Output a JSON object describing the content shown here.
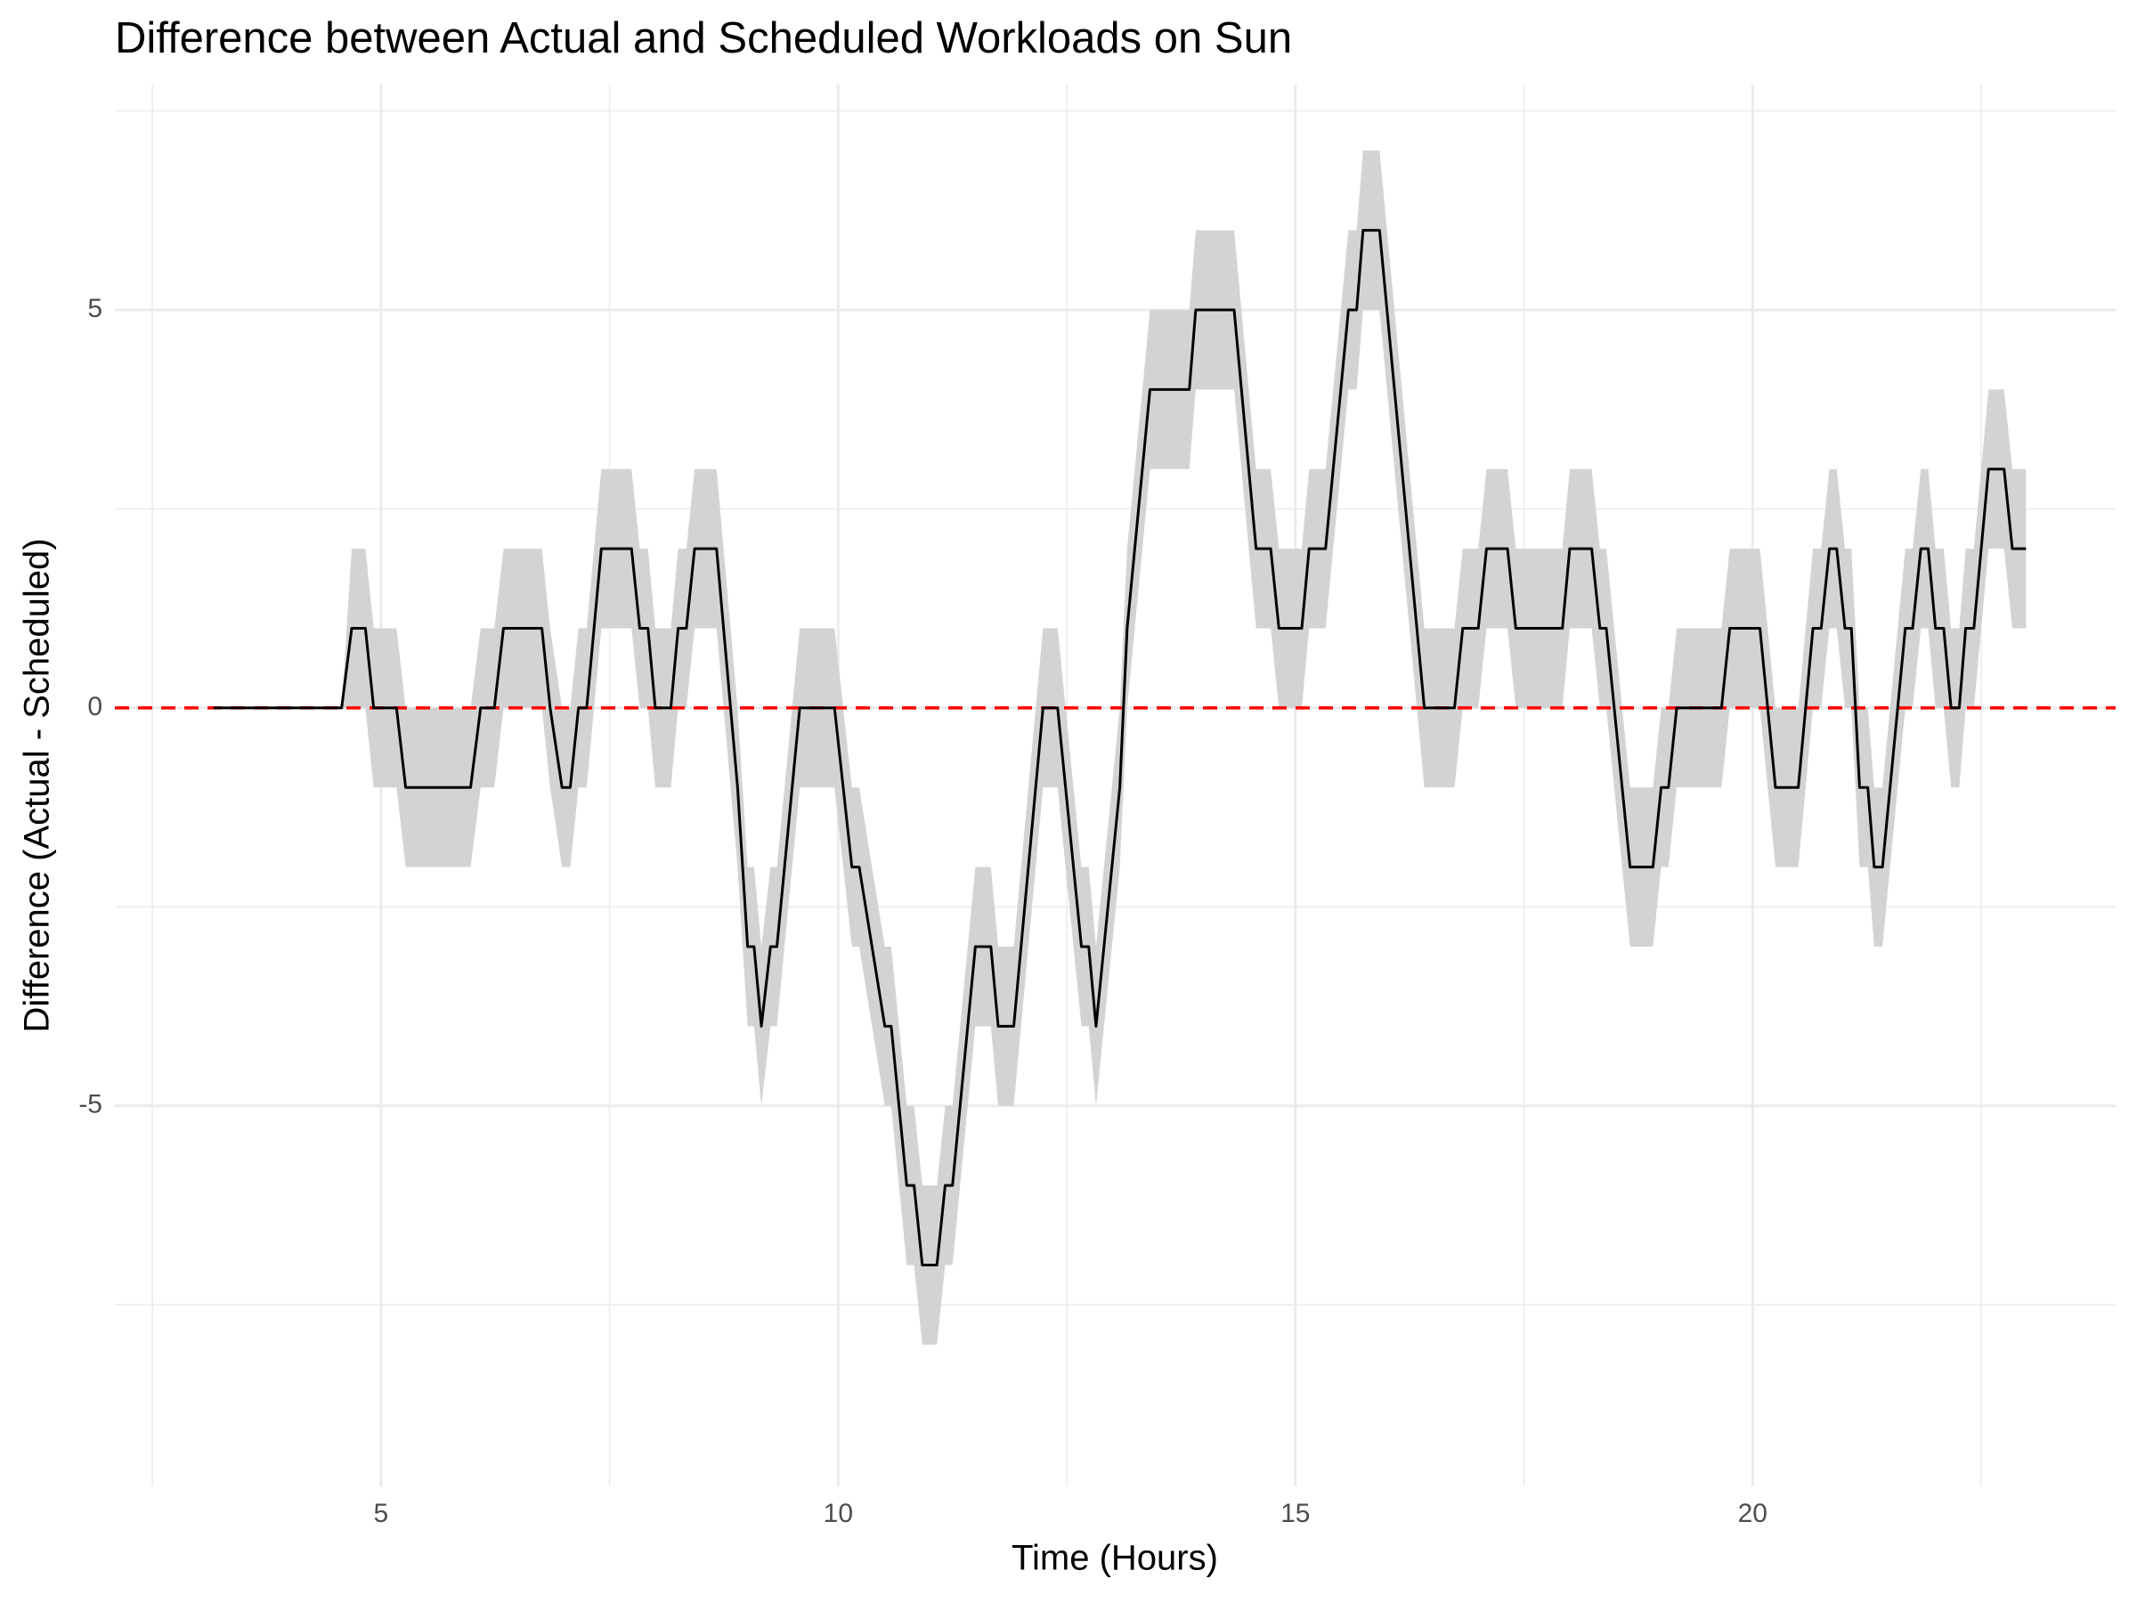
{
  "chart_data": {
    "type": "line",
    "title": "Difference between Actual and Scheduled Workloads on Sun",
    "x_label": "Time (Hours)",
    "y_label": "Difference (Actual - Scheduled)",
    "x": [
      3.17,
      4.57,
      4.68,
      4.83,
      4.92,
      5.17,
      5.27,
      5.98,
      6.09,
      6.24,
      6.34,
      6.76,
      6.85,
      6.98,
      7.07,
      7.16,
      7.25,
      7.41,
      7.74,
      7.83,
      7.92,
      8.0,
      8.17,
      8.25,
      8.34,
      8.43,
      8.67,
      8.9,
      9.01,
      9.08,
      9.16,
      9.26,
      9.33,
      9.58,
      9.96,
      10.15,
      10.23,
      10.51,
      10.58,
      10.75,
      10.83,
      10.92,
      11.08,
      11.17,
      11.25,
      11.5,
      11.67,
      11.75,
      11.92,
      12.24,
      12.4,
      12.66,
      12.74,
      12.82,
      13.08,
      13.16,
      13.41,
      13.84,
      13.91,
      14.33,
      14.57,
      14.73,
      14.82,
      15.07,
      15.15,
      15.33,
      15.58,
      15.67,
      15.74,
      15.92,
      16.41,
      16.74,
      16.83,
      17.0,
      17.09,
      17.32,
      17.41,
      17.92,
      18.0,
      18.24,
      18.33,
      18.4,
      18.66,
      18.91,
      19.0,
      19.08,
      19.17,
      19.66,
      19.75,
      20.08,
      20.25,
      20.5,
      20.66,
      20.75,
      20.84,
      20.92,
      21.01,
      21.08,
      21.17,
      21.26,
      21.33,
      21.42,
      21.67,
      21.75,
      21.84,
      21.92,
      22.0,
      22.09,
      22.17,
      22.26,
      22.33,
      22.42,
      22.58,
      22.75,
      22.84,
      22.99
    ],
    "series": [
      {
        "color": "#000000",
        "values": [
          0,
          0,
          1,
          1,
          0,
          0,
          -1,
          -1,
          0,
          0,
          1,
          1,
          0,
          -1,
          -1,
          0,
          0,
          2,
          2,
          1,
          1,
          0,
          0,
          1,
          1,
          2,
          2,
          -1,
          -3,
          -3,
          -4,
          -3,
          -3,
          0,
          0,
          -2,
          -2,
          -4,
          -4,
          -6,
          -6,
          -7,
          -7,
          -6,
          -6,
          -3,
          -3,
          -4,
          -4,
          0,
          0,
          -3,
          -3,
          -4,
          -1,
          1,
          4,
          4,
          5,
          5,
          2,
          2,
          1,
          1,
          2,
          2,
          5,
          5,
          6,
          6,
          0,
          0,
          1,
          1,
          2,
          2,
          1,
          1,
          2,
          2,
          1,
          1,
          -2,
          -2,
          -1,
          -1,
          0,
          0,
          1,
          1,
          -1,
          -1,
          1,
          1,
          2,
          2,
          1,
          1,
          -1,
          -1,
          -2,
          -2,
          1,
          1,
          2,
          2,
          1,
          1,
          0,
          0,
          1,
          1,
          3,
          3,
          2,
          2
        ]
      }
    ],
    "band": {
      "color": "#d3d3d3",
      "lower": [
        0,
        0,
        0,
        0,
        -1,
        -1,
        -2,
        -2,
        -1,
        -1,
        0,
        0,
        -1,
        -2,
        -2,
        -1,
        -1,
        1,
        1,
        0,
        0,
        -1,
        -1,
        0,
        0,
        1,
        1,
        -2,
        -4,
        -4,
        -5,
        -4,
        -4,
        -1,
        -1,
        -3,
        -3,
        -5,
        -5,
        -7,
        -7,
        -8,
        -8,
        -7,
        -7,
        -4,
        -4,
        -5,
        -5,
        -1,
        -1,
        -4,
        -4,
        -5,
        -2,
        0,
        3,
        3,
        4,
        4,
        1,
        1,
        0,
        0,
        1,
        1,
        4,
        4,
        5,
        5,
        -1,
        -1,
        0,
        0,
        1,
        1,
        0,
        0,
        1,
        1,
        0,
        0,
        -3,
        -3,
        -2,
        -2,
        -1,
        -1,
        0,
        0,
        -2,
        -2,
        0,
        0,
        1,
        1,
        0,
        0,
        -2,
        -2,
        -3,
        -3,
        0,
        0,
        1,
        1,
        0,
        0,
        -1,
        -1,
        0,
        0,
        2,
        2,
        1,
        1
      ],
      "upper": [
        0,
        0,
        2,
        2,
        1,
        1,
        0,
        0,
        1,
        1,
        2,
        2,
        1,
        0,
        0,
        1,
        1,
        3,
        3,
        2,
        2,
        1,
        1,
        2,
        2,
        3,
        3,
        0,
        -2,
        -2,
        -3,
        -2,
        -2,
        1,
        1,
        -1,
        -1,
        -3,
        -3,
        -5,
        -5,
        -6,
        -6,
        -5,
        -5,
        -2,
        -2,
        -3,
        -3,
        1,
        1,
        -2,
        -2,
        -3,
        0,
        2,
        5,
        5,
        6,
        6,
        3,
        3,
        2,
        2,
        3,
        3,
        6,
        6,
        7,
        7,
        1,
        1,
        2,
        2,
        3,
        3,
        2,
        2,
        3,
        3,
        2,
        2,
        -1,
        -1,
        0,
        0,
        1,
        1,
        2,
        2,
        0,
        0,
        2,
        2,
        3,
        3,
        2,
        2,
        0,
        0,
        -1,
        -1,
        2,
        2,
        3,
        3,
        2,
        2,
        1,
        1,
        2,
        2,
        4,
        4,
        3,
        3
      ]
    },
    "reference_line": {
      "value": 0,
      "color": "#ff0000",
      "dashed": true
    },
    "xlim": [
      2.09,
      23.97
    ],
    "ylim": [
      -9.78,
      7.83
    ],
    "xticks": [
      5,
      10,
      15,
      20
    ],
    "yticks": [
      -5,
      0,
      5
    ],
    "minor_xticks": [
      2.5,
      7.5,
      12.5,
      17.5,
      22.5
    ],
    "minor_yticks": [
      -7.5,
      -2.5,
      2.5,
      7.5
    ],
    "grid": true
  }
}
